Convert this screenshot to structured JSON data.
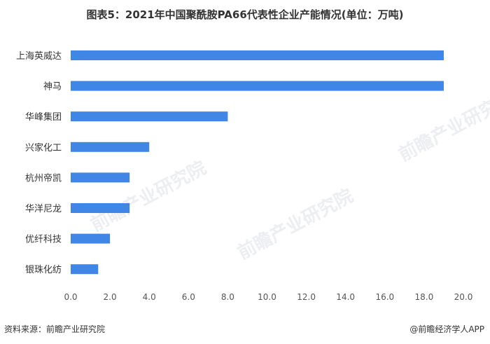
{
  "chart_data": {
    "type": "bar",
    "orientation": "horizontal",
    "title": "图表5：2021年中国聚酰胺PA66代表性企业产能情况(单位：万吨)",
    "categories": [
      "上海英威达",
      "神马",
      "华峰集团",
      "兴家化工",
      "杭州帝凯",
      "华洋尼龙",
      "优纤科技",
      "银珠化纺"
    ],
    "values": [
      19,
      19,
      8,
      4,
      3,
      3,
      2,
      1.4
    ],
    "xlim": [
      0,
      20
    ],
    "xticks": [
      "0.0",
      "2.0",
      "4.0",
      "6.0",
      "8.0",
      "10.0",
      "12.0",
      "14.0",
      "16.0",
      "18.0",
      "20.0"
    ],
    "bar_color": "#3f86e6",
    "grid": false
  },
  "footer": {
    "source": "资料来源：前瞻产业研究院",
    "brand": "@前瞻经济学人APP"
  },
  "watermark": "前瞻产业研究院"
}
